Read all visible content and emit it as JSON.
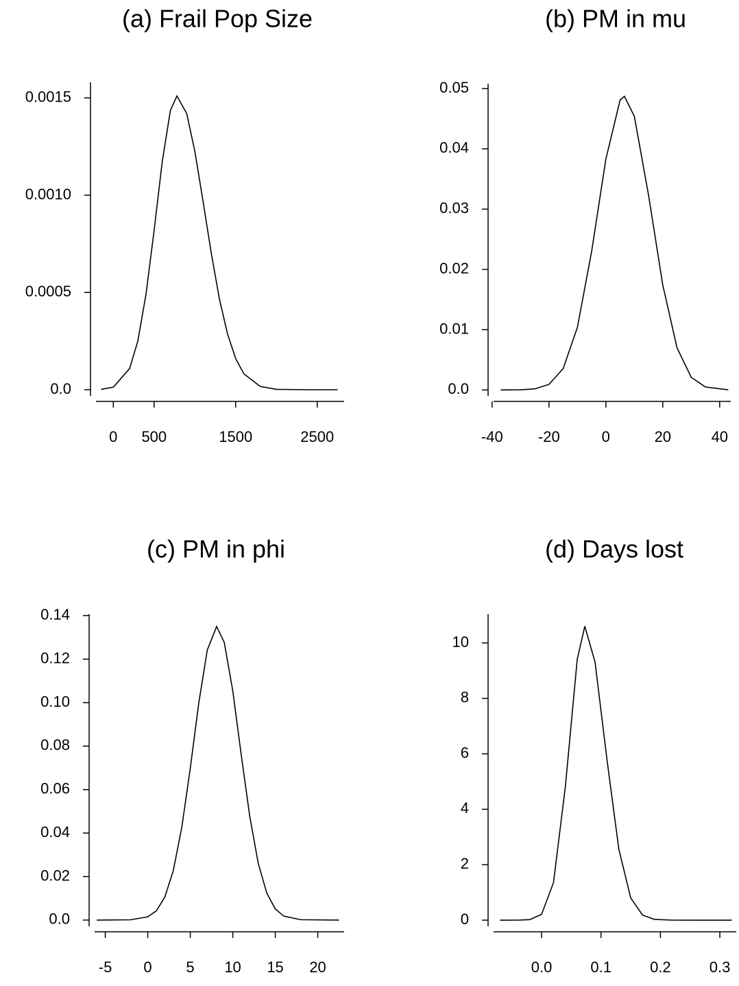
{
  "chart_data": [
    {
      "type": "line",
      "title": "(a) Frail Pop Size",
      "color": "#000000",
      "x": [
        -150,
        0,
        200,
        300,
        400,
        500,
        600,
        700,
        780,
        900,
        1000,
        1100,
        1200,
        1300,
        1400,
        1500,
        1600,
        1800,
        2000,
        2400,
        2750
      ],
      "values": [
        2e-06,
        1.3e-05,
        0.000109,
        0.000249,
        0.000489,
        0.000818,
        0.001173,
        0.001436,
        0.00151,
        0.001419,
        0.001225,
        0.000969,
        0.000704,
        0.000468,
        0.000287,
        0.00016,
        8.2e-05,
        1.7e-05,
        2e-06,
        0,
        0
      ],
      "xlim": [
        -280,
        2830
      ],
      "ylim": [
        -6e-05,
        0.00158
      ],
      "xticks": [
        0,
        500,
        1500,
        2500
      ],
      "yticks": [
        {
          "value": 0,
          "label": "0.0"
        },
        0.0005,
        {
          "value": 0.001,
          "label": "0.0010"
        },
        0.0015
      ]
    },
    {
      "type": "line",
      "title": "(b) PM in mu",
      "color": "#000000",
      "x": [
        -37,
        -30,
        -25,
        -20,
        -15,
        -10,
        -5,
        0,
        5,
        6.5,
        10,
        15,
        20,
        25,
        30,
        35,
        43
      ],
      "values": [
        0,
        2.6e-05,
        0.00018,
        0.00092,
        0.00355,
        0.0104,
        0.023,
        0.0383,
        0.0481,
        0.0487,
        0.0454,
        0.0323,
        0.0174,
        0.007,
        0.0021,
        0.00049,
        2.6e-05
      ],
      "xlim": [
        -41.4,
        43.9
      ],
      "ylim": [
        -0.0019,
        0.0508
      ],
      "xticks": [
        -40,
        -20,
        0,
        20,
        40
      ],
      "yticks": [
        {
          "value": 0,
          "label": "0.0"
        },
        0.01,
        0.02,
        0.03,
        0.04,
        0.05
      ]
    },
    {
      "type": "line",
      "title": "(c) PM in phi",
      "color": "#000000",
      "x": [
        -6,
        -2,
        0,
        1,
        2,
        3,
        4,
        5,
        6,
        7,
        8.1,
        9,
        10,
        11,
        12,
        13,
        14,
        15,
        16,
        18,
        22.5
      ],
      "values": [
        0,
        0.00012,
        0.0015,
        0.0042,
        0.0105,
        0.0227,
        0.0426,
        0.0698,
        0.0998,
        0.1242,
        0.135,
        0.1277,
        0.1054,
        0.0758,
        0.0476,
        0.026,
        0.0124,
        0.0051,
        0.0018,
        0.00016,
        0
      ],
      "xlim": [
        -6.9,
        23.1
      ],
      "ylim": [
        -0.0054,
        0.1407
      ],
      "xticks": [
        -5,
        0,
        5,
        10,
        15,
        20
      ],
      "yticks": [
        {
          "value": 0,
          "label": "0.0"
        },
        0.02,
        0.04,
        0.06,
        0.08,
        {
          "value": 0.1,
          "label": "0.10"
        },
        0.12,
        0.14
      ]
    },
    {
      "type": "line",
      "title": "(d) Days lost",
      "color": "#000000",
      "x": [
        -0.07,
        -0.04,
        -0.02,
        0,
        0.02,
        0.04,
        0.06,
        0.0727,
        0.09,
        0.11,
        0.13,
        0.15,
        0.17,
        0.19,
        0.22,
        0.26,
        0.32
      ],
      "values": [
        0,
        0.0009,
        0.018,
        0.212,
        1.35,
        4.81,
        9.41,
        10.6,
        9.31,
        5.8,
        2.56,
        0.8,
        0.18,
        0.028,
        0.0009,
        0,
        0
      ],
      "xlim": [
        -0.09,
        0.3276
      ],
      "ylim": [
        -0.42,
        11.04
      ],
      "xticks": [
        {
          "value": 0,
          "label": "0.0"
        },
        0.1,
        0.2,
        0.3
      ],
      "yticks": [
        0,
        2,
        4,
        6,
        8,
        10
      ]
    }
  ]
}
